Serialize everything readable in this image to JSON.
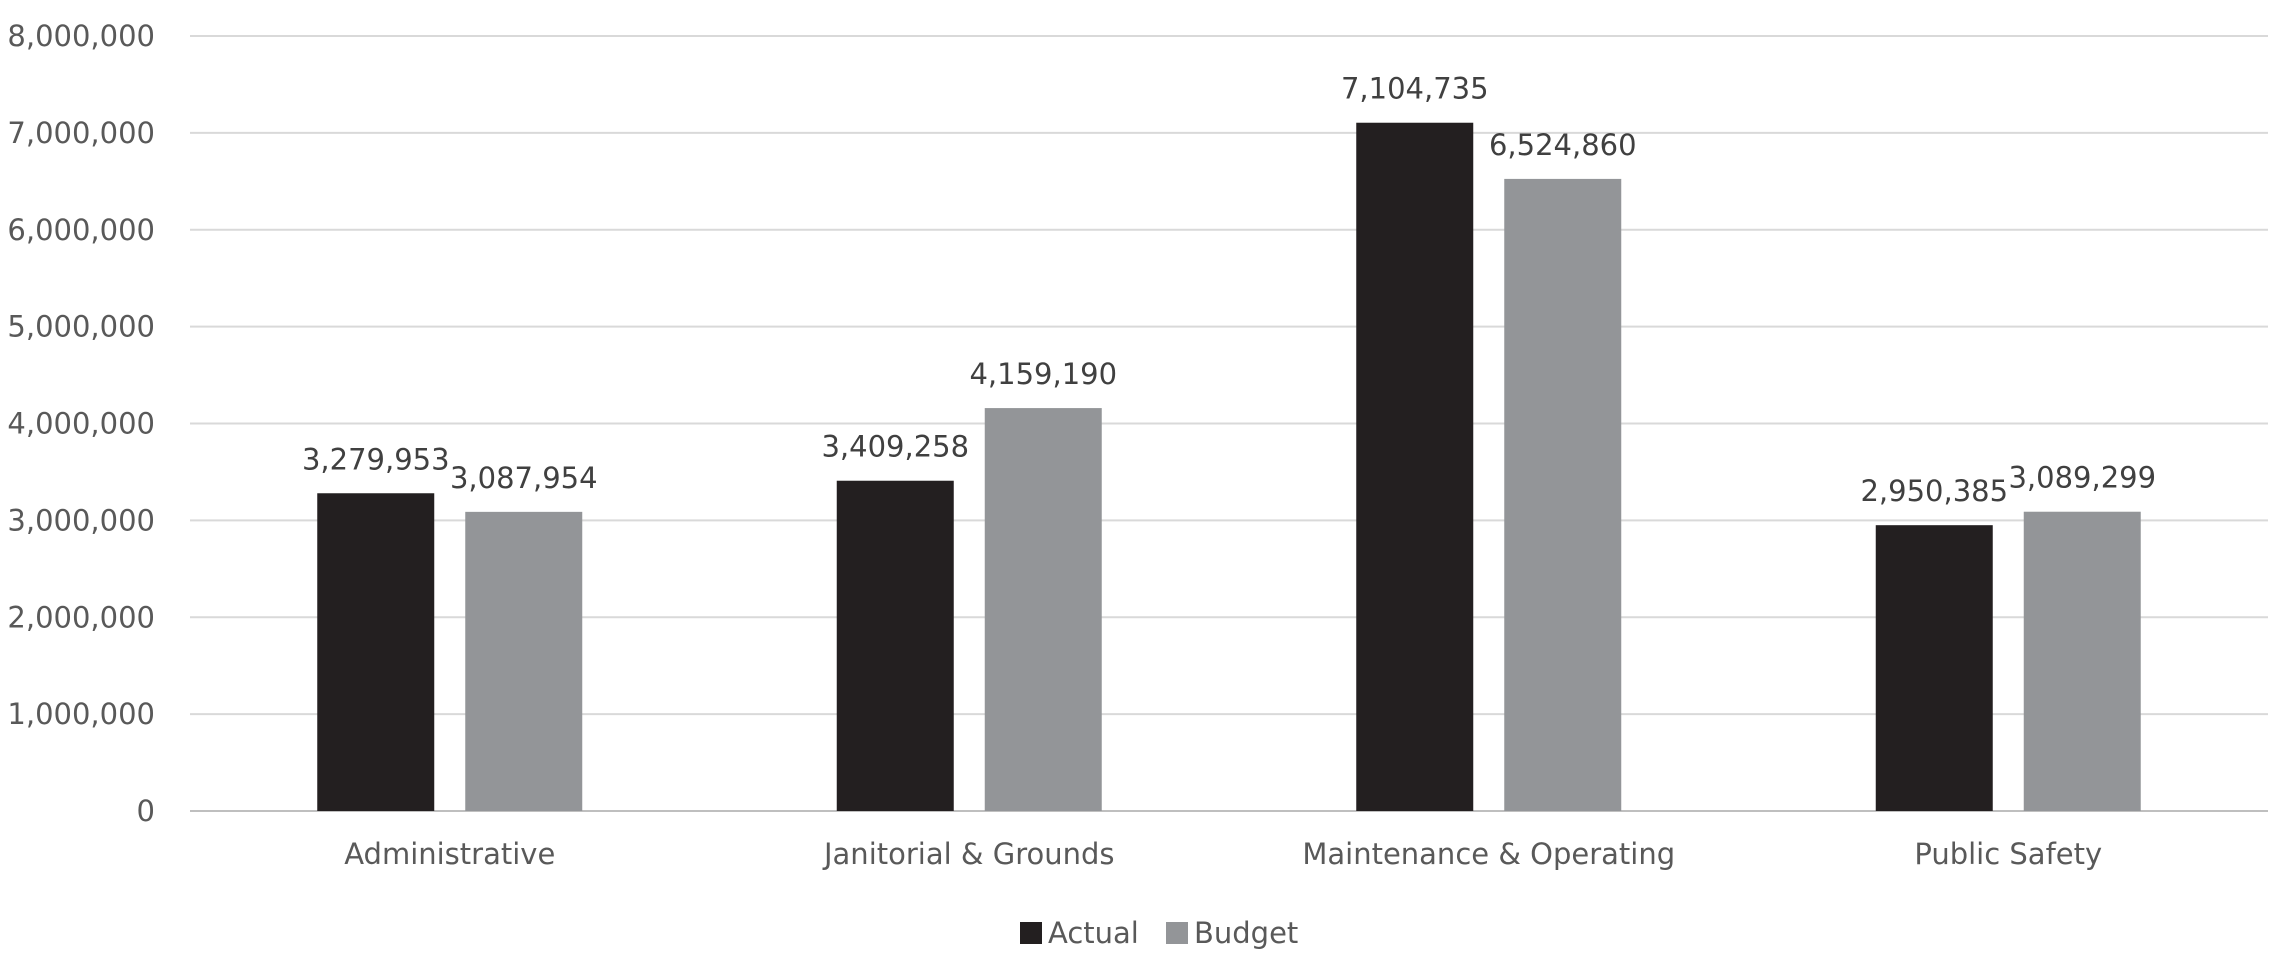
{
  "chart_data": {
    "type": "bar",
    "title": "",
    "xlabel": "",
    "ylabel": "",
    "categories": [
      "Administrative",
      "Janitorial & Grounds",
      "Maintenance & Operating",
      "Public Safety"
    ],
    "series": [
      {
        "name": "Actual",
        "color": "#231f20",
        "values": [
          3279953,
          3409258,
          7104735,
          2950385
        ],
        "labels": [
          "3,279,953",
          "3,409,258",
          "7,104,735",
          "2,950,385"
        ]
      },
      {
        "name": "Budget",
        "color": "#939598",
        "values": [
          3087954,
          4159190,
          6524860,
          3089299
        ],
        "labels": [
          "3,087,954",
          "4,159,190",
          "6,524,860",
          "3,089,299"
        ]
      }
    ],
    "ylim": [
      0,
      8000000
    ],
    "yticks": [
      0,
      1000000,
      2000000,
      3000000,
      4000000,
      5000000,
      6000000,
      7000000,
      8000000
    ],
    "ytick_labels": [
      "0",
      "1,000,000",
      "2,000,000",
      "3,000,000",
      "4,000,000",
      "5,000,000",
      "6,000,000",
      "7,000,000",
      "8,000,000"
    ],
    "grid": true,
    "legend_position": "bottom-center"
  }
}
